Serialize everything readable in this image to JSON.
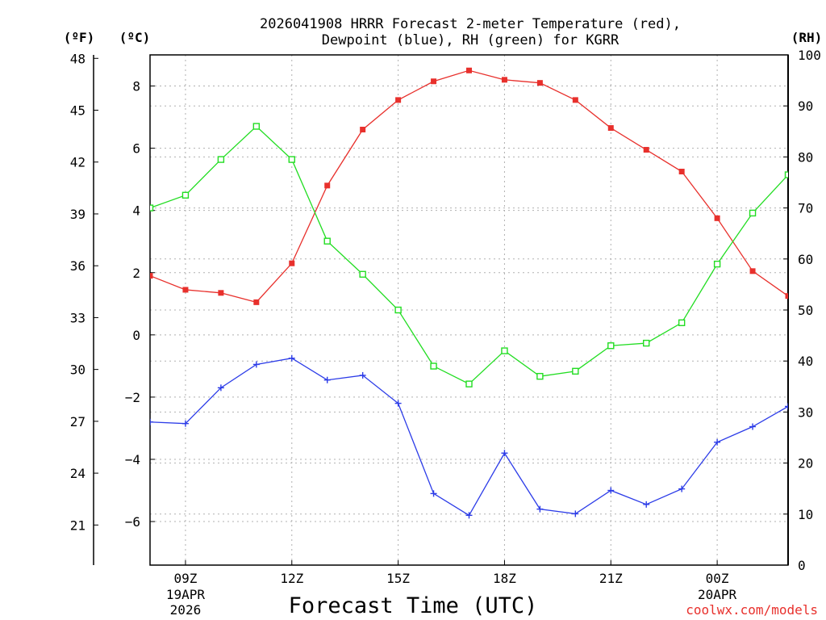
{
  "chart_data": {
    "type": "line",
    "title": [
      "2026041908 HRRR Forecast 2-meter Temperature (red),",
      "Dewpoint (blue), RH (green) for KGRR"
    ],
    "xlabel": "Forecast Time (UTC)",
    "credit": "coolwx.com/models",
    "axis_units": {
      "fahrenheit": "(ºF)",
      "celsius": "(ºC)",
      "rh": "(RH)"
    },
    "x_hours_utc": [
      8,
      9,
      10,
      11,
      12,
      13,
      14,
      15,
      16,
      17,
      18,
      19,
      20,
      21,
      22,
      23,
      24,
      25,
      26
    ],
    "x_ticks": [
      {
        "hour": 9,
        "label": "09Z",
        "sub1": "19APR",
        "sub2": "2026"
      },
      {
        "hour": 12,
        "label": "12Z",
        "sub1": "",
        "sub2": ""
      },
      {
        "hour": 15,
        "label": "15Z",
        "sub1": "",
        "sub2": ""
      },
      {
        "hour": 18,
        "label": "18Z",
        "sub1": "",
        "sub2": ""
      },
      {
        "hour": 21,
        "label": "21Z",
        "sub1": "",
        "sub2": ""
      },
      {
        "hour": 24,
        "label": "00Z",
        "sub1": "20APR",
        "sub2": ""
      }
    ],
    "xlim": [
      8,
      26
    ],
    "celsius_ticks": [
      "8",
      "6",
      "4",
      "2",
      "0",
      "−2",
      "−4",
      "−6"
    ],
    "celsius_tick_values": [
      8,
      6,
      4,
      2,
      0,
      -2,
      -4,
      -6
    ],
    "ylim_celsius": [
      -7.4,
      9.0
    ],
    "fahrenheit_ticks": [
      "48",
      "45",
      "42",
      "39",
      "36",
      "33",
      "30",
      "27",
      "24",
      "21"
    ],
    "fahrenheit_tick_values": [
      48,
      45,
      42,
      39,
      36,
      33,
      30,
      27,
      24,
      21
    ],
    "rh_ticks": [
      "100",
      "90",
      "80",
      "70",
      "60",
      "50",
      "40",
      "30",
      "20",
      "10",
      "0"
    ],
    "rh_tick_values": [
      100,
      90,
      80,
      70,
      60,
      50,
      40,
      30,
      20,
      10,
      0
    ],
    "ylim_rh": [
      0,
      100
    ],
    "series": [
      {
        "name": "2-meter Temperature",
        "color": "red",
        "axis": "celsius",
        "marker": "filled-square",
        "values": [
          1.9,
          1.45,
          1.35,
          1.05,
          2.3,
          4.8,
          6.6,
          7.55,
          8.15,
          8.5,
          8.2,
          8.1,
          7.55,
          6.65,
          5.95,
          5.25,
          3.75,
          2.05,
          1.25
        ]
      },
      {
        "name": "Dewpoint",
        "color": "blue",
        "axis": "celsius",
        "marker": "plus",
        "values": [
          -2.8,
          -2.85,
          -1.7,
          -0.95,
          -0.75,
          -1.45,
          -1.3,
          -2.2,
          -5.1,
          -5.8,
          -3.8,
          -5.6,
          -5.75,
          -5.0,
          -5.45,
          -4.95,
          -3.45,
          -2.95,
          -2.3
        ]
      },
      {
        "name": "RH",
        "color": "green",
        "axis": "rh",
        "marker": "open-square",
        "values": [
          70,
          72.5,
          79.5,
          86,
          79.5,
          63.5,
          57,
          50,
          39,
          35.5,
          42,
          37,
          38,
          43,
          43.5,
          47.5,
          59,
          69,
          76.5
        ]
      }
    ]
  }
}
